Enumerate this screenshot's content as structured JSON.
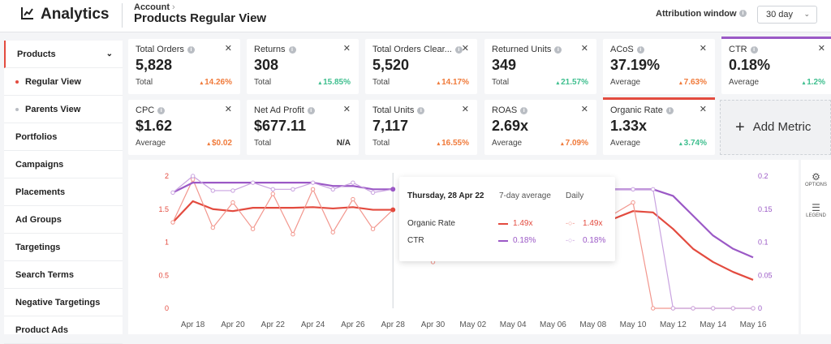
{
  "app": {
    "title": "Analytics",
    "breadcrumb": "Account",
    "page_title": "Products Regular View"
  },
  "attribution": {
    "label": "Attribution window",
    "value": "30 day"
  },
  "sidebar": {
    "items": [
      {
        "label": "Products"
      },
      {
        "label": "Regular View"
      },
      {
        "label": "Parents View"
      },
      {
        "label": "Portfolios"
      },
      {
        "label": "Campaigns"
      },
      {
        "label": "Placements"
      },
      {
        "label": "Ad Groups"
      },
      {
        "label": "Targetings"
      },
      {
        "label": "Search Terms"
      },
      {
        "label": "Negative Targetings"
      },
      {
        "label": "Product Ads"
      }
    ]
  },
  "metrics": [
    {
      "name": "Total Orders",
      "value": "5,828",
      "sub": "Total",
      "change": "14.26%",
      "direction": "up",
      "tone": "red"
    },
    {
      "name": "Returns",
      "value": "308",
      "sub": "Total",
      "change": "15.85%",
      "direction": "up",
      "tone": "green"
    },
    {
      "name": "Total Orders Clear...",
      "value": "5,520",
      "sub": "Total",
      "change": "14.17%",
      "direction": "up",
      "tone": "red"
    },
    {
      "name": "Returned Units",
      "value": "349",
      "sub": "Total",
      "change": "21.57%",
      "direction": "up",
      "tone": "green"
    },
    {
      "name": "ACoS",
      "value": "37.19%",
      "sub": "Average",
      "change": "7.63%",
      "direction": "up",
      "tone": "red"
    },
    {
      "name": "CTR",
      "value": "0.18%",
      "sub": "Average",
      "change": "1.2%",
      "direction": "up",
      "tone": "green",
      "highlight": "#9b59c6"
    },
    {
      "name": "CPC",
      "value": "$1.62",
      "sub": "Average",
      "change": "$0.02",
      "direction": "up",
      "tone": "red"
    },
    {
      "name": "Net Ad Profit",
      "value": "$677.11",
      "sub": "Total",
      "change": "N/A",
      "direction": "none",
      "tone": "neutral"
    },
    {
      "name": "Total Units",
      "value": "7,117",
      "sub": "Total",
      "change": "16.55%",
      "direction": "up",
      "tone": "red"
    },
    {
      "name": "ROAS",
      "value": "2.69x",
      "sub": "Average",
      "change": "7.09%",
      "direction": "up",
      "tone": "red"
    },
    {
      "name": "Organic Rate",
      "value": "1.33x",
      "sub": "Average",
      "change": "3.74%",
      "direction": "up",
      "tone": "green",
      "highlight": "#e34b3f"
    }
  ],
  "add_metric_label": "Add Metric",
  "tools": {
    "options": "OPTIONS",
    "legend": "LEGEND"
  },
  "tooltip": {
    "date": "Thursday, 28 Apr 22",
    "col_avg": "7-day average",
    "col_daily": "Daily",
    "rows": [
      {
        "name": "Organic Rate",
        "avg": "1.49x",
        "daily": "1.49x",
        "color": "#e34b3f"
      },
      {
        "name": "CTR",
        "avg": "0.18%",
        "daily": "0.18%",
        "color": "#9b59c6"
      }
    ]
  },
  "colors": {
    "organic": "#e34b3f",
    "organic_light": "#f2968d",
    "ctr": "#9b59c6",
    "ctr_light": "#c9a3e0"
  },
  "chart_data": {
    "type": "line",
    "x": [
      "Apr 17",
      "Apr 18",
      "Apr 19",
      "Apr 20",
      "Apr 21",
      "Apr 22",
      "Apr 23",
      "Apr 24",
      "Apr 25",
      "Apr 26",
      "Apr 27",
      "Apr 28",
      "Apr 29",
      "Apr 30",
      "May 01",
      "May 02",
      "May 03",
      "May 04",
      "May 05",
      "May 06",
      "May 07",
      "May 08",
      "May 09",
      "May 10",
      "May 11",
      "May 12",
      "May 13",
      "May 14",
      "May 15",
      "May 16"
    ],
    "x_tick_labels": [
      "Apr 18",
      "Apr 20",
      "Apr 22",
      "Apr 24",
      "Apr 26",
      "Apr 28",
      "Apr 30",
      "May 02",
      "May 04",
      "May 06",
      "May 08",
      "May 10",
      "May 12",
      "May 14",
      "May 16"
    ],
    "y_left_ticks": [
      "0",
      "0.5",
      "1",
      "1.5",
      "2"
    ],
    "y_right_ticks": [
      "0",
      "0.05",
      "0.1",
      "0.15",
      "0.2"
    ],
    "ylim_left": [
      0,
      2
    ],
    "ylim_right": [
      0,
      0.2
    ],
    "hover_x": "Apr 28",
    "series": [
      {
        "name": "Organic Rate",
        "style": "7-day average",
        "axis": "left",
        "values": [
          1.3,
          1.62,
          1.5,
          1.47,
          1.52,
          1.52,
          1.52,
          1.53,
          1.51,
          1.53,
          1.49,
          1.49,
          null,
          null,
          null,
          null,
          null,
          null,
          null,
          null,
          null,
          null,
          1.35,
          1.47,
          1.45,
          1.2,
          0.9,
          0.7,
          0.55,
          0.43
        ]
      },
      {
        "name": "Organic Rate",
        "style": "Daily",
        "axis": "left",
        "values": [
          1.3,
          1.95,
          1.22,
          1.6,
          1.2,
          1.73,
          1.12,
          1.8,
          1.15,
          1.65,
          1.2,
          1.49,
          null,
          0.7,
          null,
          null,
          null,
          null,
          null,
          null,
          null,
          null,
          1.42,
          1.6,
          0.0,
          0.0,
          0.0,
          0.0,
          0.0,
          0.0
        ]
      },
      {
        "name": "CTR",
        "style": "7-day average",
        "axis": "right",
        "values": [
          0.175,
          0.19,
          0.19,
          0.19,
          0.19,
          0.19,
          0.19,
          0.19,
          0.185,
          0.185,
          0.18,
          0.18,
          null,
          null,
          null,
          null,
          null,
          null,
          null,
          null,
          null,
          null,
          0.18,
          0.18,
          0.18,
          0.17,
          0.14,
          0.11,
          0.09,
          0.077
        ]
      },
      {
        "name": "CTR",
        "style": "Daily",
        "axis": "right",
        "values": [
          0.175,
          0.2,
          0.178,
          0.178,
          0.19,
          0.18,
          0.18,
          0.19,
          0.18,
          0.19,
          0.175,
          0.18,
          null,
          null,
          null,
          null,
          null,
          null,
          null,
          null,
          null,
          null,
          0.18,
          0.18,
          0.18,
          0.0,
          0.0,
          0.0,
          0.0,
          0.0
        ]
      }
    ]
  }
}
